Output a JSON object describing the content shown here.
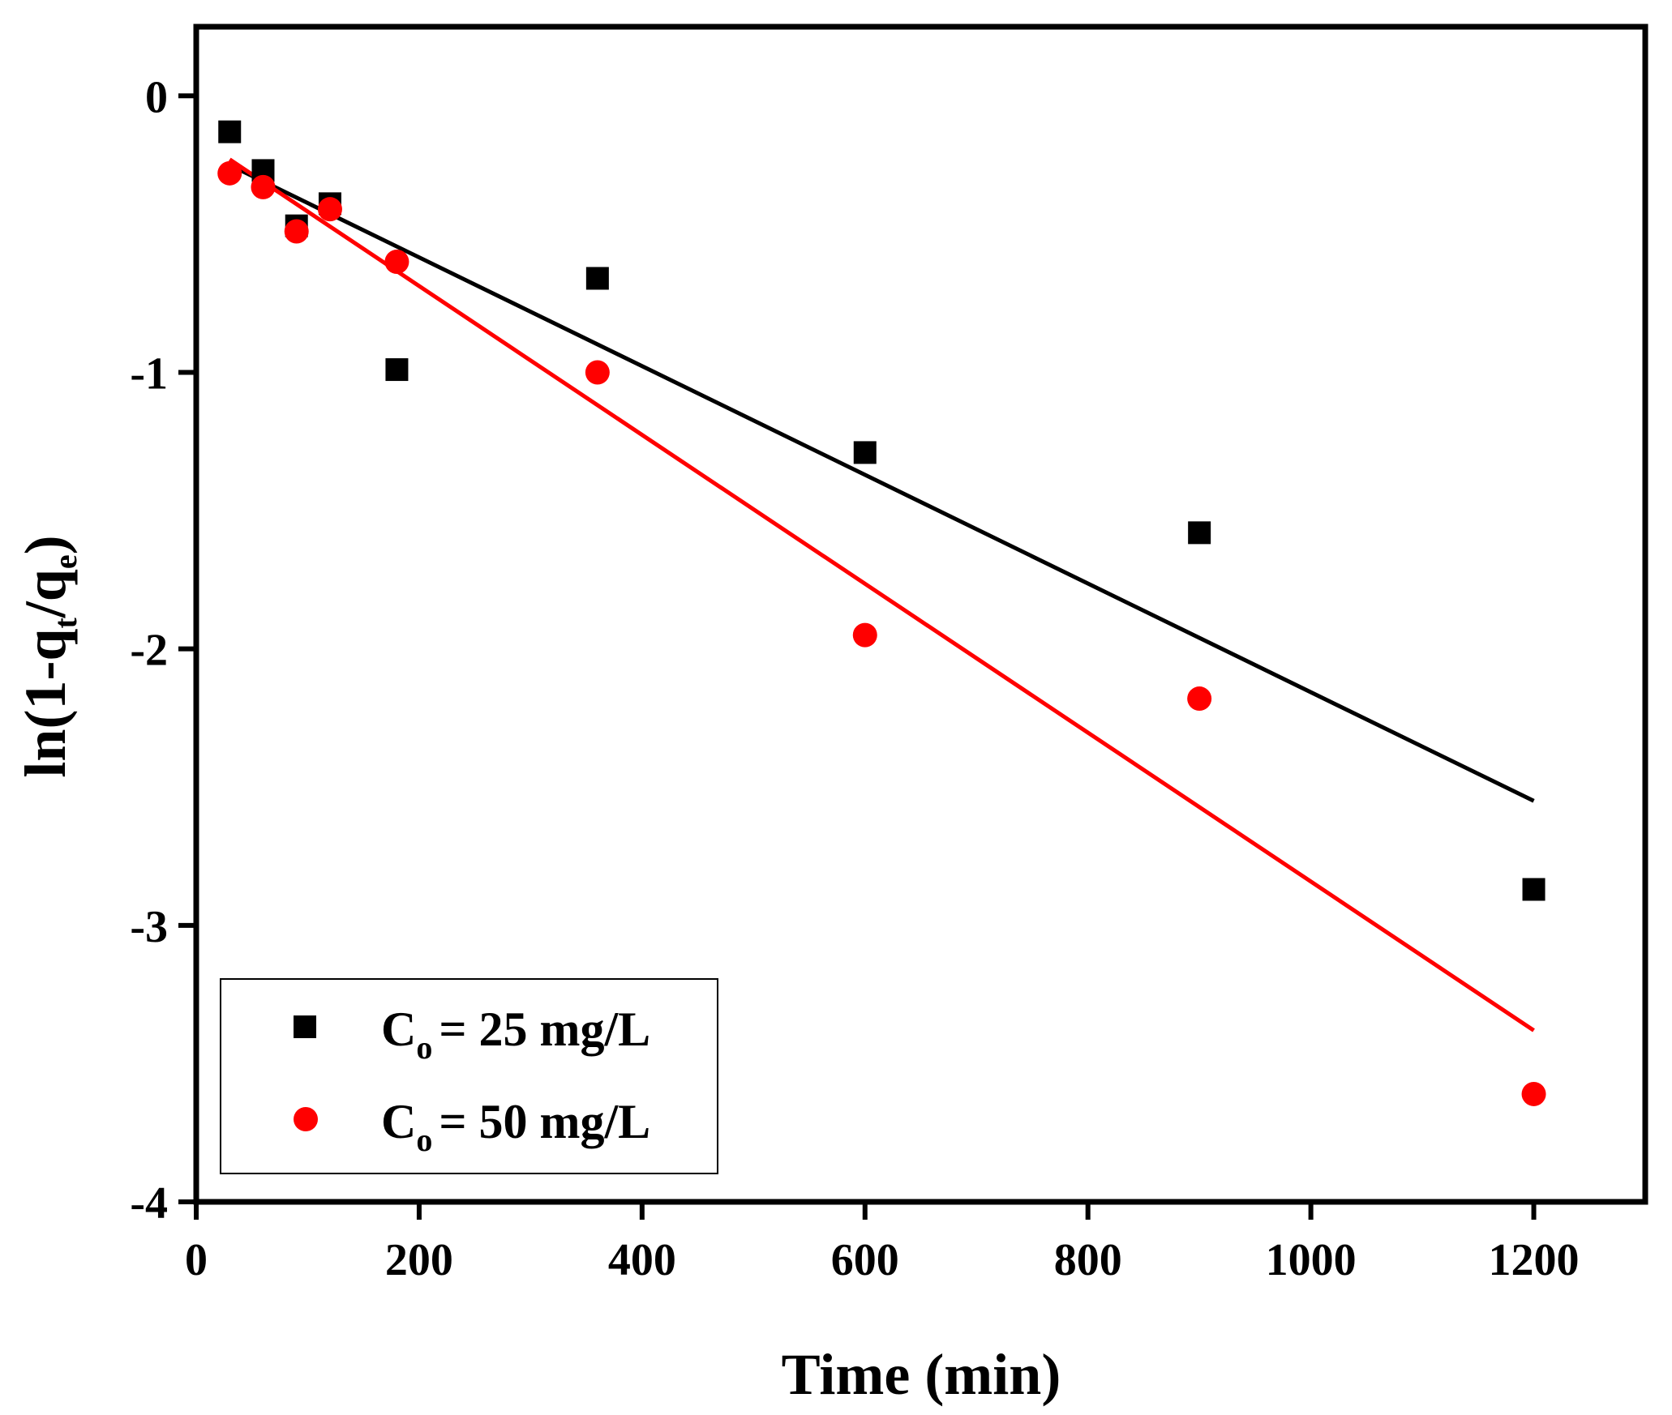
{
  "chart_data": {
    "type": "scatter",
    "title": "",
    "xlabel": "Time (min)",
    "ylabel": {
      "prefix": "ln(1-q",
      "sub1": "t",
      "mid": "/q",
      "sub2": "e",
      "suffix": ")"
    },
    "xlim": [
      0,
      1300
    ],
    "ylim": [
      -4,
      0.25
    ],
    "x_ticks": [
      0,
      200,
      400,
      600,
      800,
      1000,
      1200
    ],
    "y_ticks": [
      0,
      -1,
      -2,
      -3,
      -4
    ],
    "grid": false,
    "legend_position": "bottom-left",
    "series": [
      {
        "name": "C_o = 25 mg/L",
        "legend": {
          "c": "C",
          "sub": "o",
          "rest": "= 25 mg/L"
        },
        "marker": "square",
        "color": "#000000",
        "x": [
          30,
          60,
          90,
          120,
          180,
          360,
          600,
          900,
          1200
        ],
        "y": [
          -0.13,
          -0.27,
          -0.47,
          -0.39,
          -0.99,
          -0.66,
          -1.29,
          -1.58,
          -2.87
        ],
        "fit": {
          "x": [
            30,
            1200
          ],
          "y": [
            -0.25,
            -2.55
          ]
        }
      },
      {
        "name": "C_o = 50 mg/L",
        "legend": {
          "c": "C",
          "sub": "o",
          "rest": "= 50 mg/L"
        },
        "marker": "circle",
        "color": "#ff0000",
        "x": [
          30,
          60,
          90,
          120,
          180,
          360,
          600,
          900,
          1200
        ],
        "y": [
          -0.28,
          -0.33,
          -0.49,
          -0.41,
          -0.6,
          -1.0,
          -1.95,
          -2.18,
          -3.61
        ],
        "fit": {
          "x": [
            30,
            1200
          ],
          "y": [
            -0.23,
            -3.38
          ]
        }
      }
    ]
  }
}
